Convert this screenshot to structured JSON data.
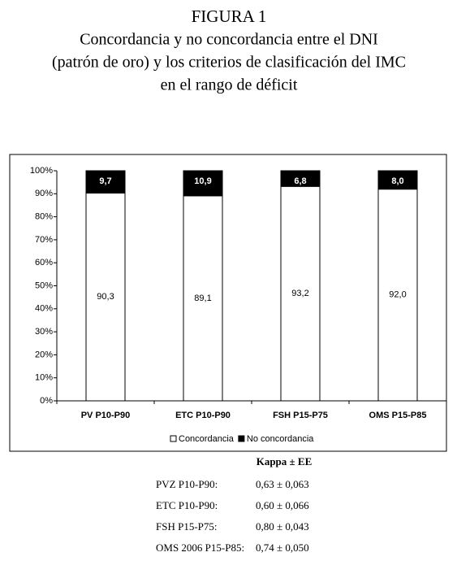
{
  "chart_data": {
    "type": "bar",
    "stacked": true,
    "title": "FIGURA 1",
    "subtitle": [
      "Concordancia y no concordancia entre el DNI",
      "(patrón de oro) y los criterios de clasificación del IMC",
      "en el rango de déficit"
    ],
    "categories": [
      "PV P10-P90",
      "ETC P10-P90",
      "FSH P15-P75",
      "OMS P15-P85"
    ],
    "series": [
      {
        "name": "Concordancia",
        "color": "#ffffff",
        "values": [
          90.3,
          89.1,
          93.2,
          92.0
        ],
        "value_labels": [
          "90,3",
          "89,1",
          "93,2",
          "92,0"
        ]
      },
      {
        "name": "No concordancia",
        "color": "#000000",
        "values": [
          9.7,
          10.9,
          6.8,
          8.0
        ],
        "value_labels": [
          "9,7",
          "10,9",
          "6,8",
          "8,0"
        ]
      }
    ],
    "ylim": [
      0,
      100
    ],
    "yticks": [
      {
        "value": 0,
        "label": "0%"
      },
      {
        "value": 10,
        "label": "10%"
      },
      {
        "value": 20,
        "label": "20%"
      },
      {
        "value": 30,
        "label": "30%"
      },
      {
        "value": 40,
        "label": "40%"
      },
      {
        "value": 50,
        "label": "50%"
      },
      {
        "value": 60,
        "label": "60%"
      },
      {
        "value": 70,
        "label": "70%"
      },
      {
        "value": 80,
        "label": "80%"
      },
      {
        "value": 90,
        "label": "90%"
      },
      {
        "value": 100,
        "label": "100%"
      }
    ],
    "grid": false,
    "legend": "bottom"
  },
  "kappa_table": {
    "header": "Kappa  ±  EE",
    "rows": [
      [
        "PVZ  P10-P90:",
        "0,63 ± 0,063"
      ],
      [
        "ETC P10-P90:",
        "0,60 ± 0,066"
      ],
      [
        "FSH P15-P75:",
        "0,80 ± 0,043"
      ],
      [
        "OMS 2006 P15-P85:",
        "0,74 ± 0,050"
      ]
    ]
  }
}
